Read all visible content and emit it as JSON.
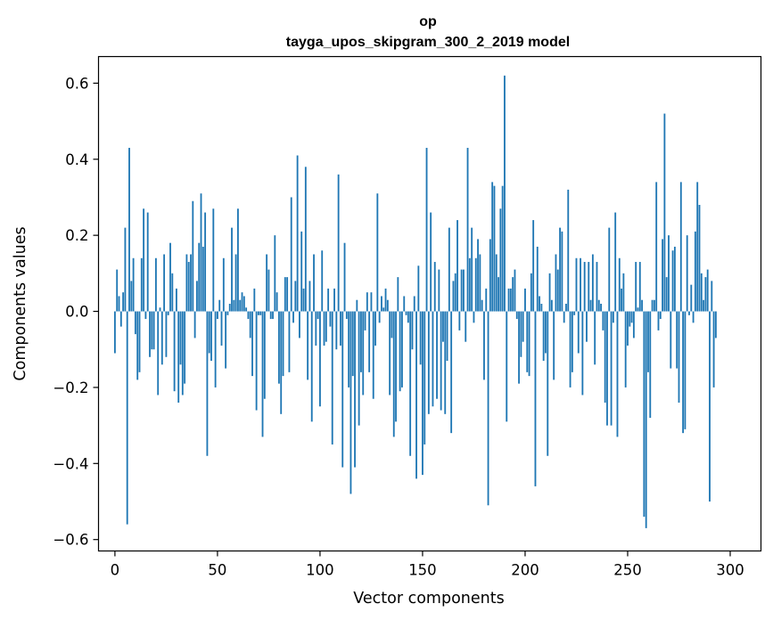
{
  "chart_data": {
    "type": "bar",
    "title": "op",
    "subtitle": "tayga_upos_skipgram_300_2_2019 model",
    "xlabel": "Vector components",
    "ylabel": "Components values",
    "xlim": [
      -8,
      315
    ],
    "ylim": [
      -0.63,
      0.67
    ],
    "xticks": [
      0,
      50,
      100,
      150,
      200,
      250,
      300
    ],
    "yticks": [
      -0.6,
      -0.4,
      -0.2,
      0.0,
      0.2,
      0.4,
      0.6
    ],
    "ytick_labels": [
      "−0.6",
      "−0.4",
      "−0.2",
      "0.0",
      "0.2",
      "0.4",
      "0.6"
    ],
    "bar_color": "#1f77b4",
    "values": [
      -0.11,
      0.11,
      0.04,
      -0.04,
      0.05,
      0.22,
      -0.56,
      0.43,
      0.08,
      0.14,
      -0.06,
      -0.18,
      -0.16,
      0.14,
      0.27,
      -0.02,
      0.26,
      -0.12,
      -0.1,
      -0.1,
      0.14,
      -0.22,
      0.01,
      -0.14,
      0.15,
      -0.12,
      -0.01,
      0.18,
      0.1,
      -0.21,
      0.06,
      -0.24,
      -0.14,
      -0.22,
      -0.19,
      0.15,
      0.13,
      0.15,
      0.29,
      -0.07,
      0.08,
      0.18,
      0.31,
      0.17,
      0.26,
      -0.38,
      -0.11,
      -0.13,
      0.27,
      -0.2,
      -0.02,
      0.03,
      -0.09,
      0.14,
      -0.15,
      -0.01,
      0.02,
      0.22,
      0.03,
      0.15,
      0.27,
      0.03,
      0.05,
      0.04,
      0.01,
      -0.02,
      -0.07,
      -0.17,
      0.06,
      -0.26,
      -0.01,
      -0.01,
      -0.33,
      -0.23,
      0.15,
      0.11,
      -0.02,
      -0.02,
      0.2,
      0.05,
      -0.19,
      -0.27,
      -0.17,
      0.09,
      0.09,
      -0.16,
      0.3,
      -0.03,
      0.08,
      0.41,
      -0.07,
      0.21,
      0.06,
      0.38,
      -0.18,
      0.08,
      -0.29,
      0.15,
      -0.09,
      -0.02,
      -0.25,
      0.16,
      -0.09,
      -0.08,
      0.06,
      -0.04,
      -0.35,
      0.06,
      -0.1,
      0.36,
      -0.09,
      -0.41,
      0.18,
      -0.02,
      -0.2,
      -0.48,
      -0.17,
      -0.41,
      0.03,
      -0.3,
      -0.16,
      -0.22,
      -0.05,
      0.05,
      -0.16,
      0.05,
      -0.23,
      -0.09,
      0.31,
      -0.03,
      0.04,
      0.01,
      0.06,
      0.03,
      -0.22,
      -0.07,
      -0.33,
      -0.29,
      0.09,
      -0.21,
      -0.2,
      0.04,
      -0.01,
      -0.03,
      -0.38,
      -0.1,
      0.04,
      -0.44,
      0.12,
      -0.14,
      -0.43,
      -0.35,
      0.43,
      -0.27,
      0.26,
      -0.25,
      0.13,
      -0.23,
      0.11,
      -0.26,
      -0.08,
      -0.27,
      -0.13,
      0.22,
      -0.32,
      0.08,
      0.1,
      0.24,
      -0.05,
      0.11,
      0.11,
      -0.08,
      0.43,
      0.14,
      0.22,
      -0.03,
      0.14,
      0.19,
      0.15,
      0.03,
      -0.18,
      0.06,
      -0.51,
      0.19,
      0.34,
      0.33,
      0.15,
      0.09,
      0.27,
      0.33,
      0.62,
      -0.29,
      0.06,
      0.06,
      0.09,
      0.11,
      -0.02,
      -0.19,
      -0.12,
      -0.08,
      0.06,
      -0.16,
      -0.17,
      0.1,
      0.24,
      -0.46,
      0.17,
      0.04,
      0.02,
      -0.13,
      -0.11,
      -0.38,
      0.1,
      0.03,
      -0.18,
      0.15,
      0.11,
      0.22,
      0.21,
      -0.03,
      0.02,
      0.32,
      -0.2,
      -0.16,
      -0.01,
      0.14,
      -0.11,
      0.14,
      -0.22,
      0.13,
      -0.08,
      0.13,
      0.03,
      0.15,
      -0.14,
      0.13,
      0.03,
      0.02,
      -0.05,
      -0.24,
      -0.3,
      0.22,
      -0.3,
      -0.03,
      0.26,
      -0.33,
      0.14,
      0.06,
      0.1,
      -0.2,
      -0.09,
      -0.04,
      -0.03,
      -0.07,
      0.13,
      0.01,
      0.13,
      0.03,
      -0.54,
      -0.57,
      -0.16,
      -0.28,
      0.03,
      0.03,
      0.34,
      -0.05,
      -0.02,
      0.19,
      0.52,
      0.09,
      0.2,
      -0.15,
      0.16,
      0.17,
      -0.15,
      -0.24,
      0.34,
      -0.32,
      -0.31,
      0.2,
      -0.01,
      0.07,
      -0.03,
      0.21,
      0.34,
      0.28,
      0.1,
      0.03,
      0.09,
      0.11,
      -0.5,
      0.08,
      -0.2,
      -0.07
    ]
  }
}
